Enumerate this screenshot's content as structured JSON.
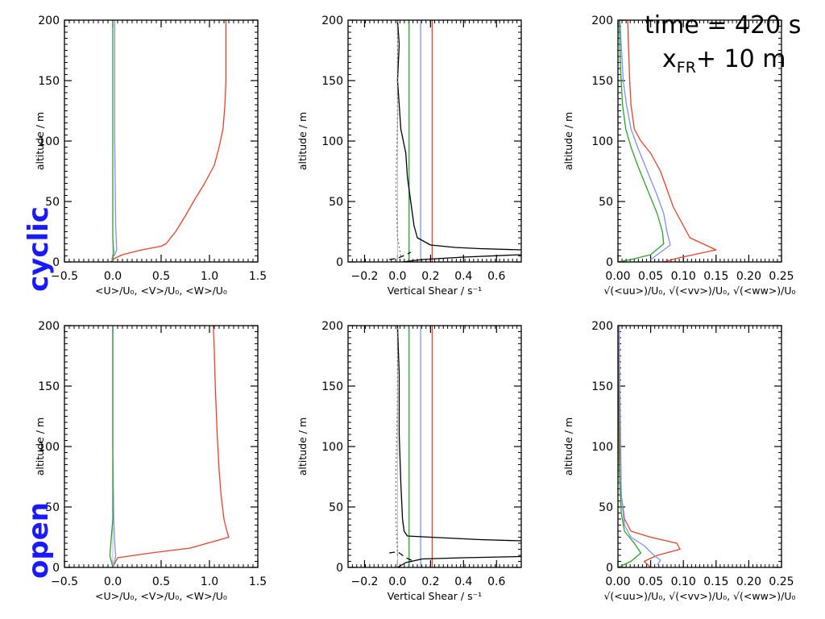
{
  "row_labels": [
    "cyclic",
    "open"
  ],
  "annotation": {
    "time_text": "time = 420 s",
    "pos_main": "x",
    "pos_sub": "FR",
    "pos_rest": "+ 10 m"
  },
  "colors": {
    "u": "#e8402a",
    "v": "#8090f0",
    "w": "#2ca02c",
    "shear": "#000000",
    "shear_aux": "#777777"
  },
  "chart_data": [
    {
      "type": "line",
      "row": "cyclic",
      "panel": "mean-velocity",
      "xlabel": "<U>/U₀, <V>/U₀, <W>/U₀",
      "ylabel": "altitude / m",
      "xlim": [
        -0.5,
        1.5
      ],
      "ylim": [
        0,
        200
      ],
      "xticks": [
        -0.5,
        0.0,
        0.5,
        1.0,
        1.5
      ],
      "xtick_labels": [
        "−0.5",
        "0.0",
        "0.5",
        "1.0",
        "1.5"
      ],
      "yticks": [
        0,
        50,
        100,
        150,
        200
      ],
      "grid": false,
      "series": [
        {
          "key": "u",
          "style": "solid",
          "x": [
            -0.02,
            0.02,
            0.1,
            0.3,
            0.5,
            0.55,
            0.65,
            0.75,
            0.85,
            0.95,
            1.05,
            1.1,
            1.14,
            1.16,
            1.17,
            1.17,
            1.17
          ],
          "y": [
            0,
            3,
            6,
            10,
            13,
            15,
            25,
            38,
            52,
            65,
            80,
            95,
            110,
            130,
            150,
            180,
            200
          ]
        },
        {
          "key": "v",
          "style": "solid",
          "x": [
            0.0,
            -0.01,
            0.02,
            0.04,
            0.03,
            0.02,
            0.02
          ],
          "y": [
            0,
            3,
            6,
            10,
            30,
            100,
            200
          ]
        },
        {
          "key": "w",
          "style": "solid",
          "x": [
            0.0,
            0.0,
            0.01,
            0.0,
            0.0,
            0.0
          ],
          "y": [
            0,
            4,
            8,
            20,
            100,
            200
          ]
        }
      ]
    },
    {
      "type": "line",
      "row": "cyclic",
      "panel": "vertical-shear",
      "xlabel": "Vertical Shear / s⁻¹",
      "ylabel": "altitude / m",
      "xlim": [
        -0.3,
        0.75
      ],
      "ylim": [
        0,
        200
      ],
      "xticks": [
        -0.2,
        0.0,
        0.2,
        0.4,
        0.6
      ],
      "xtick_labels": [
        "−0.2",
        "0.0",
        "0.2",
        "0.4",
        "0.6"
      ],
      "yticks": [
        0,
        50,
        100,
        150,
        200
      ],
      "grid": false,
      "vlines": [
        {
          "key": "w",
          "x": 0.07
        },
        {
          "key": "v",
          "x": 0.14
        },
        {
          "key": "u",
          "x": 0.21
        }
      ],
      "series": [
        {
          "key": "shear",
          "style": "solid",
          "x": [
            0.75,
            0.5,
            0.35,
            0.2,
            0.12,
            0.1,
            0.08,
            0.06,
            0.05,
            0.02,
            0.01,
            0.0,
            0.01,
            0.0
          ],
          "y": [
            10,
            11,
            12,
            14,
            20,
            30,
            50,
            70,
            90,
            110,
            130,
            150,
            180,
            200
          ]
        },
        {
          "key": "shear",
          "style": "solid",
          "x": [
            0.75,
            0.4,
            0.15,
            0.03
          ],
          "y": [
            6,
            4,
            2,
            0
          ]
        },
        {
          "key": "shear",
          "style": "dashed",
          "x": [
            -0.05,
            0.0,
            0.05,
            0.08
          ],
          "y": [
            2,
            3,
            6,
            8
          ]
        },
        {
          "key": "shear_aux",
          "style": "dotted",
          "x": [
            0.02,
            0.0,
            -0.01,
            0.0,
            0.0
          ],
          "y": [
            5,
            20,
            60,
            120,
            200
          ]
        }
      ]
    },
    {
      "type": "line",
      "row": "cyclic",
      "panel": "rms-fluctuations",
      "xlabel": "√(<uu>)/U₀, √(<vv>)/U₀, √(<ww>)/U₀",
      "ylabel": "altitude / m",
      "xlim": [
        0.0,
        0.25
      ],
      "ylim": [
        0,
        200
      ],
      "xticks": [
        0.0,
        0.05,
        0.1,
        0.15,
        0.2,
        0.25
      ],
      "xtick_labels": [
        "0.00",
        "0.05",
        "0.10",
        "0.15",
        "0.20",
        "0.25"
      ],
      "yticks": [
        0,
        50,
        100,
        150,
        200
      ],
      "grid": false,
      "series": [
        {
          "key": "u",
          "style": "solid",
          "x": [
            0.07,
            0.09,
            0.15,
            0.11,
            0.1,
            0.085,
            0.075,
            0.065,
            0.05,
            0.035,
            0.025,
            0.02,
            0.018,
            0.016,
            0.015
          ],
          "y": [
            0,
            3,
            10,
            20,
            30,
            45,
            60,
            75,
            90,
            100,
            110,
            130,
            150,
            180,
            200
          ]
        },
        {
          "key": "v",
          "style": "solid",
          "x": [
            0.05,
            0.06,
            0.08,
            0.075,
            0.07,
            0.06,
            0.045,
            0.03,
            0.02,
            0.013,
            0.008,
            0.005,
            0.003
          ],
          "y": [
            2,
            6,
            14,
            25,
            40,
            55,
            75,
            95,
            110,
            130,
            150,
            180,
            200
          ]
        },
        {
          "key": "w",
          "style": "solid",
          "x": [
            0.0,
            0.02,
            0.05,
            0.07,
            0.068,
            0.06,
            0.045,
            0.03,
            0.02,
            0.012,
            0.007,
            0.004,
            0.002
          ],
          "y": [
            0,
            2,
            6,
            15,
            25,
            40,
            60,
            80,
            95,
            110,
            130,
            160,
            200
          ]
        }
      ]
    },
    {
      "type": "line",
      "row": "open",
      "panel": "mean-velocity",
      "xlabel": "<U>/U₀, <V>/U₀, <W>/U₀",
      "ylabel": "altitude / m",
      "xlim": [
        -0.5,
        1.5
      ],
      "ylim": [
        0,
        200
      ],
      "xticks": [
        -0.5,
        0.0,
        0.5,
        1.0,
        1.5
      ],
      "xtick_labels": [
        "−0.5",
        "0.0",
        "0.5",
        "1.0",
        "1.5"
      ],
      "yticks": [
        0,
        50,
        100,
        150,
        200
      ],
      "grid": false,
      "series": [
        {
          "key": "u",
          "style": "solid",
          "x": [
            0.0,
            0.05,
            0.4,
            0.8,
            1.2,
            1.18,
            1.15,
            1.12,
            1.1,
            1.08,
            1.06,
            1.05,
            1.04
          ],
          "y": [
            0,
            8,
            12,
            16,
            25,
            30,
            40,
            60,
            80,
            110,
            150,
            180,
            200
          ]
        },
        {
          "key": "v",
          "style": "solid",
          "x": [
            0.0,
            0.02,
            0.03,
            0.02,
            0.01,
            0.0,
            0.0
          ],
          "y": [
            0,
            5,
            10,
            20,
            40,
            100,
            200
          ]
        },
        {
          "key": "w",
          "style": "solid",
          "x": [
            0.0,
            -0.03,
            -0.02,
            0.0,
            0.0,
            0.0
          ],
          "y": [
            0,
            10,
            20,
            40,
            100,
            200
          ]
        }
      ]
    },
    {
      "type": "line",
      "row": "open",
      "panel": "vertical-shear",
      "xlabel": "Vertical Shear / s⁻¹",
      "ylabel": "altitude / m",
      "xlim": [
        -0.3,
        0.75
      ],
      "ylim": [
        0,
        200
      ],
      "xticks": [
        -0.2,
        0.0,
        0.2,
        0.4,
        0.6
      ],
      "xtick_labels": [
        "−0.2",
        "0.0",
        "0.2",
        "0.4",
        "0.6"
      ],
      "yticks": [
        0,
        50,
        100,
        150,
        200
      ],
      "grid": false,
      "vlines": [
        {
          "key": "w",
          "x": 0.07
        },
        {
          "key": "v",
          "x": 0.14
        },
        {
          "key": "u",
          "x": 0.21
        }
      ],
      "series": [
        {
          "key": "shear",
          "style": "solid",
          "x": [
            0.75,
            0.5,
            0.2,
            0.06,
            0.04,
            0.03,
            0.02,
            0.01,
            0.01,
            0.0
          ],
          "y": [
            22,
            23,
            25,
            26,
            30,
            40,
            70,
            110,
            160,
            200
          ]
        },
        {
          "key": "shear",
          "style": "solid",
          "x": [
            0.75,
            0.4,
            0.15,
            0.05,
            0.0
          ],
          "y": [
            9,
            8,
            7,
            4,
            0
          ]
        },
        {
          "key": "shear",
          "style": "dashed",
          "x": [
            -0.05,
            0.0,
            0.05,
            0.1
          ],
          "y": [
            12,
            13,
            8,
            5
          ]
        },
        {
          "key": "shear_aux",
          "style": "dotted",
          "x": [
            0.0,
            -0.01,
            -0.01,
            0.0,
            0.0
          ],
          "y": [
            10,
            40,
            80,
            140,
            200
          ]
        }
      ]
    },
    {
      "type": "line",
      "row": "open",
      "panel": "rms-fluctuations",
      "xlabel": "√(<uu>)/U₀, √(<vv>)/U₀, √(<ww>)/U₀",
      "ylabel": "altitude / m",
      "xlim": [
        0.0,
        0.25
      ],
      "ylim": [
        0,
        200
      ],
      "xticks": [
        0.0,
        0.05,
        0.1,
        0.15,
        0.2,
        0.25
      ],
      "xtick_labels": [
        "0.00",
        "0.05",
        "0.10",
        "0.15",
        "0.20",
        "0.25"
      ],
      "yticks": [
        0,
        50,
        100,
        150,
        200
      ],
      "grid": false,
      "series": [
        {
          "key": "u",
          "style": "solid",
          "x": [
            0.05,
            0.04,
            0.06,
            0.095,
            0.09,
            0.05,
            0.02,
            0.01,
            0.005,
            0.003,
            0.002
          ],
          "y": [
            0,
            5,
            10,
            15,
            20,
            25,
            30,
            40,
            60,
            100,
            200
          ]
        },
        {
          "key": "v",
          "style": "solid",
          "x": [
            0.06,
            0.065,
            0.055,
            0.04,
            0.02,
            0.01,
            0.005,
            0.002
          ],
          "y": [
            2,
            6,
            10,
            18,
            25,
            35,
            60,
            200
          ]
        },
        {
          "key": "w",
          "style": "solid",
          "x": [
            0.0,
            0.02,
            0.035,
            0.025,
            0.01,
            0.005,
            0.002,
            0.0
          ],
          "y": [
            0,
            5,
            12,
            20,
            30,
            45,
            80,
            200
          ]
        }
      ]
    }
  ]
}
